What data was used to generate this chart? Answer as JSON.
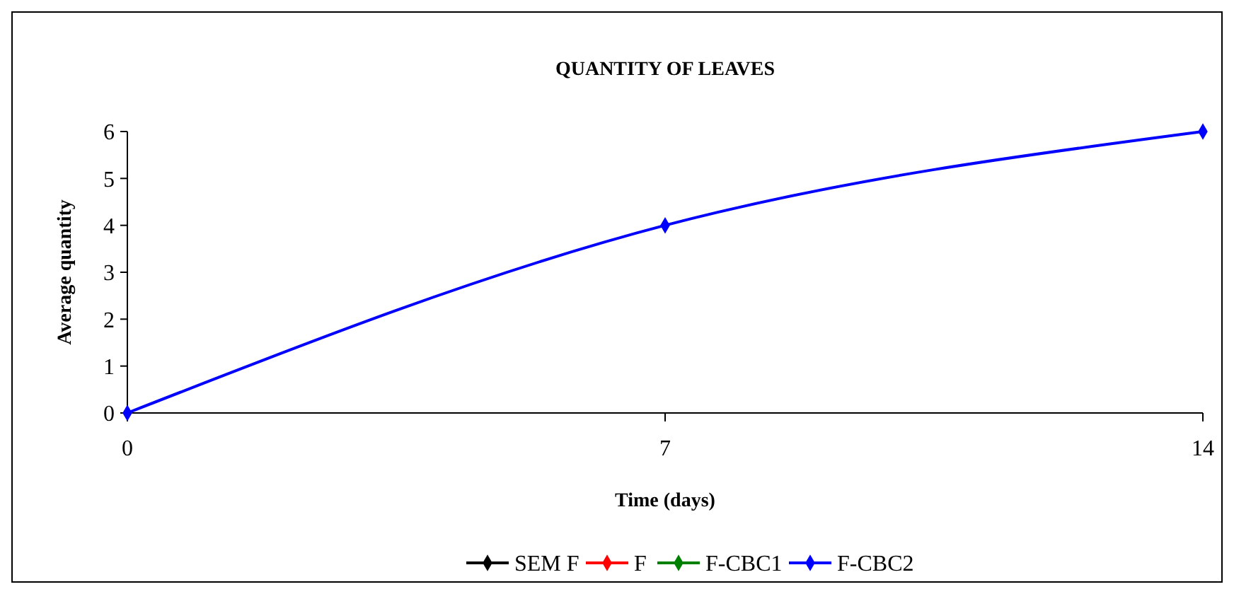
{
  "chart_data": {
    "type": "line",
    "title": "QUANTITY OF LEAVES",
    "xlabel": "Time (days)",
    "ylabel": "Average quantity",
    "x": [
      0,
      7,
      14
    ],
    "series": [
      {
        "name": "SEM F",
        "color": "#000000",
        "values": [
          null,
          null,
          null
        ]
      },
      {
        "name": "F",
        "color": "#ff0000",
        "values": [
          null,
          null,
          null
        ]
      },
      {
        "name": "F-CBC1",
        "color": "#008000",
        "values": [
          null,
          null,
          null
        ]
      },
      {
        "name": "F-CBC2",
        "color": "#0000ff",
        "values": [
          0,
          4,
          6
        ]
      }
    ],
    "xlim": [
      0,
      14
    ],
    "xticks": [
      0,
      7,
      14
    ],
    "ylim": [
      0,
      6
    ],
    "yticks": [
      0,
      1,
      2,
      3,
      4,
      5,
      6
    ],
    "grid": false,
    "legend": "bottom",
    "marker": "diamond",
    "line_style": "solid"
  }
}
